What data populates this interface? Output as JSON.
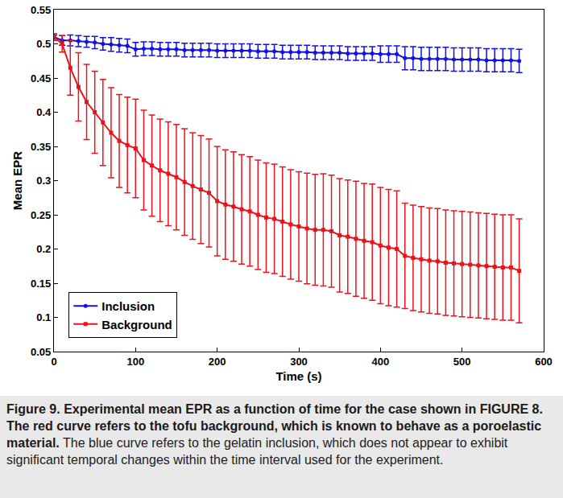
{
  "chart_data": {
    "type": "line",
    "xlabel": "Time (s)",
    "ylabel": "Mean EPR",
    "x": [
      0,
      10,
      20,
      30,
      40,
      50,
      60,
      70,
      80,
      90,
      100,
      110,
      120,
      130,
      140,
      150,
      160,
      170,
      180,
      190,
      200,
      210,
      220,
      230,
      240,
      250,
      260,
      270,
      280,
      290,
      300,
      310,
      320,
      330,
      340,
      350,
      360,
      370,
      380,
      390,
      400,
      410,
      420,
      430,
      440,
      450,
      460,
      470,
      480,
      490,
      500,
      510,
      520,
      530,
      540,
      550,
      560,
      570
    ],
    "series": [
      {
        "name": "Inclusion",
        "color": "#1010e0",
        "marker": "circle",
        "values": [
          0.51,
          0.505,
          0.505,
          0.504,
          0.503,
          0.502,
          0.5,
          0.499,
          0.498,
          0.497,
          0.492,
          0.493,
          0.493,
          0.492,
          0.492,
          0.492,
          0.491,
          0.491,
          0.491,
          0.491,
          0.49,
          0.49,
          0.49,
          0.49,
          0.49,
          0.489,
          0.489,
          0.489,
          0.488,
          0.488,
          0.488,
          0.488,
          0.487,
          0.487,
          0.487,
          0.487,
          0.486,
          0.486,
          0.486,
          0.486,
          0.485,
          0.485,
          0.485,
          0.479,
          0.479,
          0.478,
          0.478,
          0.478,
          0.478,
          0.477,
          0.477,
          0.477,
          0.477,
          0.476,
          0.476,
          0.476,
          0.476,
          0.475
        ],
        "error": [
          0.003,
          0.007,
          0.008,
          0.008,
          0.008,
          0.009,
          0.009,
          0.01,
          0.01,
          0.01,
          0.01,
          0.01,
          0.01,
          0.01,
          0.01,
          0.01,
          0.01,
          0.01,
          0.01,
          0.01,
          0.01,
          0.01,
          0.01,
          0.01,
          0.01,
          0.01,
          0.01,
          0.01,
          0.01,
          0.01,
          0.01,
          0.01,
          0.01,
          0.01,
          0.01,
          0.01,
          0.01,
          0.01,
          0.01,
          0.01,
          0.012,
          0.012,
          0.012,
          0.017,
          0.017,
          0.017,
          0.017,
          0.017,
          0.017,
          0.017,
          0.017,
          0.017,
          0.017,
          0.017,
          0.017,
          0.017,
          0.017,
          0.017
        ]
      },
      {
        "name": "Background",
        "color": "#e8141b",
        "marker": "square",
        "values": [
          0.51,
          0.5,
          0.465,
          0.437,
          0.415,
          0.4,
          0.385,
          0.37,
          0.358,
          0.352,
          0.347,
          0.33,
          0.322,
          0.315,
          0.31,
          0.305,
          0.298,
          0.292,
          0.287,
          0.282,
          0.27,
          0.265,
          0.262,
          0.258,
          0.255,
          0.25,
          0.246,
          0.244,
          0.24,
          0.236,
          0.233,
          0.23,
          0.228,
          0.228,
          0.226,
          0.22,
          0.218,
          0.215,
          0.212,
          0.21,
          0.205,
          0.202,
          0.2,
          0.19,
          0.187,
          0.185,
          0.183,
          0.182,
          0.18,
          0.179,
          0.178,
          0.177,
          0.176,
          0.175,
          0.174,
          0.173,
          0.173,
          0.168
        ],
        "error": [
          0.005,
          0.012,
          0.04,
          0.05,
          0.055,
          0.06,
          0.063,
          0.066,
          0.068,
          0.07,
          0.072,
          0.073,
          0.074,
          0.075,
          0.076,
          0.077,
          0.078,
          0.078,
          0.079,
          0.079,
          0.08,
          0.08,
          0.08,
          0.08,
          0.08,
          0.08,
          0.08,
          0.08,
          0.08,
          0.08,
          0.08,
          0.081,
          0.081,
          0.082,
          0.082,
          0.083,
          0.083,
          0.084,
          0.084,
          0.085,
          0.085,
          0.085,
          0.085,
          0.077,
          0.077,
          0.077,
          0.077,
          0.077,
          0.077,
          0.077,
          0.077,
          0.077,
          0.077,
          0.077,
          0.077,
          0.077,
          0.077,
          0.076
        ]
      }
    ],
    "xlim": [
      0,
      600
    ],
    "xticks": [
      0,
      100,
      200,
      300,
      400,
      500,
      600
    ],
    "ylim": [
      0.05,
      0.55
    ],
    "yticks": [
      0.05,
      0.1,
      0.15,
      0.2,
      0.25,
      0.3,
      0.35,
      0.4,
      0.45,
      0.5,
      0.55
    ],
    "grid": false,
    "legend": "lower left"
  },
  "caption": {
    "bold": "Figure 9. Experimental mean EPR as a function of time for the case shown in FIGURE 8. The red curve refers to the tofu background, which is known to behave as a poroelastic material.",
    "text": "The blue curve refers to the gelatin inclusion, which does not appear to exhibit significant temporal changes within the time interval used for the experiment."
  }
}
